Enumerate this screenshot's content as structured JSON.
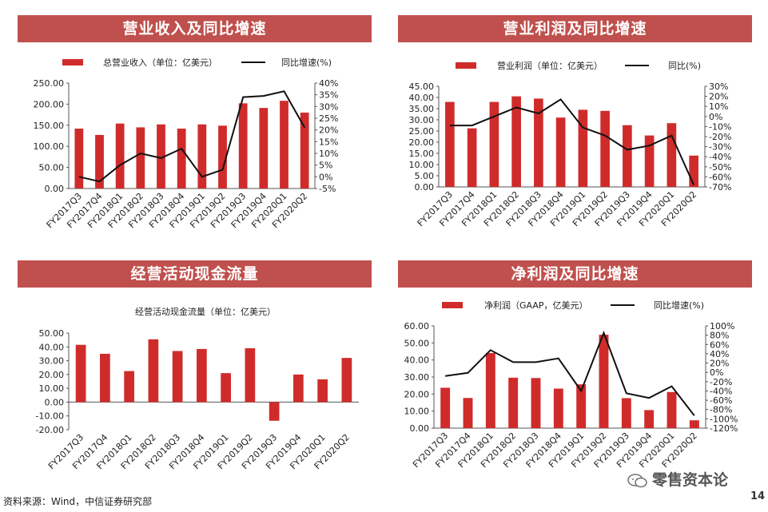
{
  "panels": [
    {
      "header": "营业收入及同比增速"
    },
    {
      "header": "营业利润及同比增速"
    },
    {
      "header": "经营活动现金流量"
    },
    {
      "header": "净利润及同比增速"
    }
  ],
  "footer": {
    "source": "资料来源：Wind，中信证券研究部",
    "page": "14",
    "brand": "零售资本论"
  },
  "colors": {
    "header_bg": "#c0504d",
    "bar": "#d02b2b",
    "line": "#111111"
  },
  "chart_data": [
    {
      "type": "bar+line",
      "title": "营业收入及同比增速",
      "categories": [
        "FY2017Q3",
        "FY2017Q4",
        "FY2018Q1",
        "FY2018Q2",
        "FY2018Q3",
        "FY2018Q4",
        "FY2019Q1",
        "FY2019Q2",
        "FY2019Q3",
        "FY2019Q4",
        "FY2020Q1",
        "FY2020Q2"
      ],
      "bar_series": {
        "name": "总营业收入（单位：亿美元）",
        "values": [
          142,
          127,
          154,
          145,
          152,
          142,
          152,
          149,
          202,
          191,
          208,
          180
        ]
      },
      "line_series": {
        "name": "同比增速(%)",
        "values": [
          0,
          -2,
          5,
          10,
          8,
          12,
          0,
          3,
          34,
          34.5,
          36.5,
          21
        ]
      },
      "yleft": {
        "min": 0,
        "max": 250,
        "step": 50,
        "decimals": 2,
        "suffix": ""
      },
      "yright": {
        "min": -5,
        "max": 40,
        "step": 5,
        "decimals": 0,
        "suffix": "%"
      },
      "legend": "top"
    },
    {
      "type": "bar+line",
      "title": "营业利润及同比增速",
      "categories": [
        "FY2017Q3",
        "FY2017Q4",
        "FY2018Q1",
        "FY2018Q2",
        "FY2018Q3",
        "FY2018Q4",
        "FY2019Q1",
        "FY2019Q2",
        "FY2019Q3",
        "FY2019Q4",
        "FY2020Q1",
        "FY2020Q2"
      ],
      "bar_series": {
        "name": "营业利润（单位：亿美元）",
        "values": [
          38,
          26.2,
          38,
          40.5,
          39.5,
          31,
          34.5,
          34,
          27.6,
          23,
          28.5,
          14
        ]
      },
      "line_series": {
        "name": "同比(%)",
        "values": [
          -9,
          -9,
          0,
          9,
          3,
          17,
          -11,
          -19,
          -33,
          -29,
          -19,
          -68
        ]
      },
      "yleft": {
        "min": 0,
        "max": 45,
        "step": 5,
        "decimals": 2,
        "suffix": ""
      },
      "yright": {
        "min": -70,
        "max": 30,
        "step": 10,
        "decimals": 0,
        "suffix": "%"
      },
      "legend": "top"
    },
    {
      "type": "bar",
      "title": "经营活动现金流量",
      "subtitle": "经营活动现金流量（单位：亿美元）",
      "categories": [
        "FY2017Q3",
        "FY2017Q4",
        "FY2018Q1",
        "FY2018Q2",
        "FY2018Q3",
        "FY2018Q4",
        "FY2019Q1",
        "FY2019Q2",
        "FY2019Q3",
        "FY2019Q4",
        "FY2020Q1",
        "FY2020Q2"
      ],
      "bar_series": {
        "values": [
          41.5,
          35,
          22.5,
          45.5,
          37,
          38.5,
          21,
          39,
          -13.5,
          20,
          16.5,
          32
        ]
      },
      "yleft": {
        "min": -20,
        "max": 50,
        "step": 10,
        "decimals": 2,
        "suffix": ""
      }
    },
    {
      "type": "bar+line",
      "title": "净利润及同比增速",
      "categories": [
        "FY2017Q3",
        "FY2017Q4",
        "FY2018Q1",
        "FY2018Q2",
        "FY2018Q3",
        "FY2018Q4",
        "FY2019Q1",
        "FY2019Q2",
        "FY2019Q3",
        "FY2019Q4",
        "FY2020Q1",
        "FY2020Q2"
      ],
      "bar_series": {
        "name": "净利润（GAAP，亿美元）",
        "values": [
          23.7,
          17.7,
          44.1,
          29.6,
          29.4,
          23.2,
          25.7,
          54.8,
          17.6,
          10.6,
          21.2,
          4.6
        ]
      },
      "line_series": {
        "name": "同比增速(%)",
        "values": [
          -8,
          -1,
          48,
          22,
          22,
          30,
          -40,
          85,
          -45,
          -55,
          -30,
          -93
        ]
      },
      "yleft": {
        "min": 0,
        "max": 60,
        "step": 10,
        "decimals": 2,
        "suffix": ""
      },
      "yright": {
        "min": -120,
        "max": 100,
        "step": 20,
        "decimals": 0,
        "suffix": "%"
      },
      "legend": "top"
    }
  ]
}
